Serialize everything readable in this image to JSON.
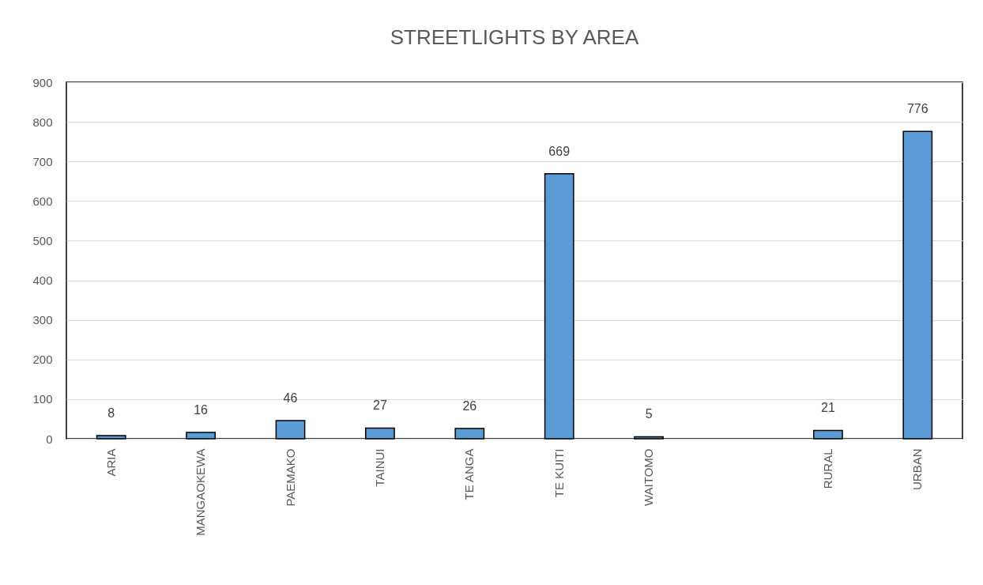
{
  "chart_data": {
    "type": "bar",
    "title": "STREETLIGHTS BY AREA",
    "categories": [
      "ARIA",
      "MANGAOKEWA",
      "PAEMAKO",
      "TAINUI",
      "TE ANGA",
      "TE KUITI",
      "WAITOMO",
      null,
      "RURAL",
      "URBAN"
    ],
    "values": [
      8,
      16,
      46,
      27,
      26,
      669,
      5,
      null,
      21,
      776
    ],
    "color": "#5b9bd5",
    "ylim": [
      0,
      900
    ],
    "yticks": [
      0,
      100,
      200,
      300,
      400,
      500,
      600,
      700,
      800,
      900
    ],
    "grid": "y",
    "data_labels": true
  }
}
